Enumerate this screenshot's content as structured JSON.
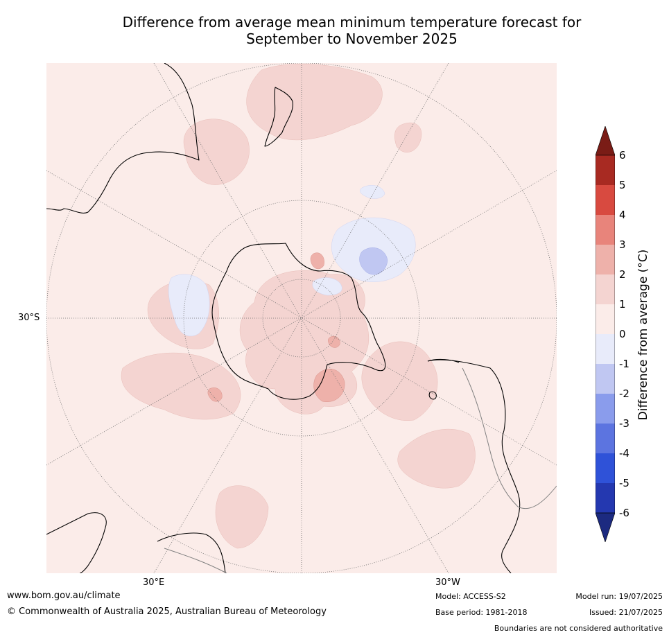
{
  "title": {
    "line1": "Difference from average mean minimum temperature forecast for",
    "line2": "September to November 2025"
  },
  "map": {
    "projection": "south-polar-stereographic",
    "lat_label": "30°S",
    "lon_labels": [
      "30°E",
      "30°W"
    ],
    "colors": {
      "ocean_background": "#fbece9",
      "anomaly_0_1": "#fbece9",
      "anomaly_1_2": "#f4d4d1",
      "anomaly_2_3": "#eeb1aa",
      "anomaly_neg1_0": "#e8ebfa",
      "anomaly_neg2_neg1": "#c0c7f2",
      "coastline": "#000000",
      "boundary": "#808080",
      "graticule": "#707070"
    }
  },
  "colorbar": {
    "label": "Difference from average (°C)",
    "ticks": [
      "6",
      "5",
      "4",
      "3",
      "2",
      "1",
      "0",
      "-1",
      "-2",
      "-3",
      "-4",
      "-5",
      "-6"
    ],
    "bins": [
      {
        "range": ">6",
        "color": "#7a1c16"
      },
      {
        "range": "5 to 6",
        "color": "#a82a22"
      },
      {
        "range": "4 to 5",
        "color": "#d84a40"
      },
      {
        "range": "3 to 4",
        "color": "#e8847b"
      },
      {
        "range": "2 to 3",
        "color": "#eeb1aa"
      },
      {
        "range": "1 to 2",
        "color": "#f4d4d1"
      },
      {
        "range": "0 to 1",
        "color": "#fbece9"
      },
      {
        "range": "-1 to 0",
        "color": "#e8ebfa"
      },
      {
        "range": "-2 to -1",
        "color": "#c0c7f2"
      },
      {
        "range": "-3 to -2",
        "color": "#8a9cec"
      },
      {
        "range": "-4 to -3",
        "color": "#5c74e0"
      },
      {
        "range": "-5 to -4",
        "color": "#2f52d8"
      },
      {
        "range": "-6 to -5",
        "color": "#2438b0"
      },
      {
        "range": "<-6",
        "color": "#1c2a80"
      }
    ]
  },
  "footer": {
    "website": "www.bom.gov.au/climate",
    "copyright": "© Commonwealth of Australia 2025, Australian Bureau of Meteorology",
    "model": "Model: ACCESS-S2",
    "base_period": "Base period: 1981-2018",
    "model_run": "Model run: 19/07/2025",
    "issued": "Issued: 21/07/2025",
    "disclaimer": "Boundaries are not considered authoritative"
  }
}
